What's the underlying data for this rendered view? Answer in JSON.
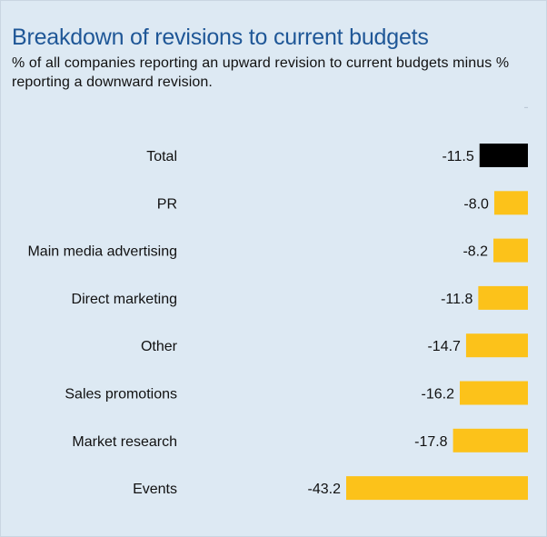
{
  "title": "Breakdown of revisions to current budgets",
  "subtitle": "% of all companies reporting an upward revision to current budgets minus % reporting a downward revision.",
  "colors": {
    "background": "#dde9f3",
    "title": "#1f5797",
    "bar": "#fcc21a",
    "bar_highlight": "#000000",
    "tick": "#b5c3d0"
  },
  "chart_data": {
    "type": "bar",
    "orientation": "horizontal",
    "title": "Breakdown of revisions to current budgets",
    "subtitle": "% of all companies reporting an upward revision to current budgets minus % reporting a downward revision.",
    "categories": [
      "Total",
      "PR",
      "Main media advertising",
      "Direct marketing",
      "Other",
      "Sales promotions",
      "Market research",
      "Events"
    ],
    "values": [
      -11.5,
      -8.0,
      -8.2,
      -11.8,
      -14.7,
      -16.2,
      -17.8,
      -43.2
    ],
    "value_labels": [
      "-11.5",
      "-8.0",
      "-8.2",
      "-11.8",
      "-14.7",
      "-16.2",
      "-17.8",
      "-43.2"
    ],
    "highlight": "Total",
    "xlim": [
      -43.2,
      0
    ],
    "grid": false,
    "legend": "none"
  }
}
